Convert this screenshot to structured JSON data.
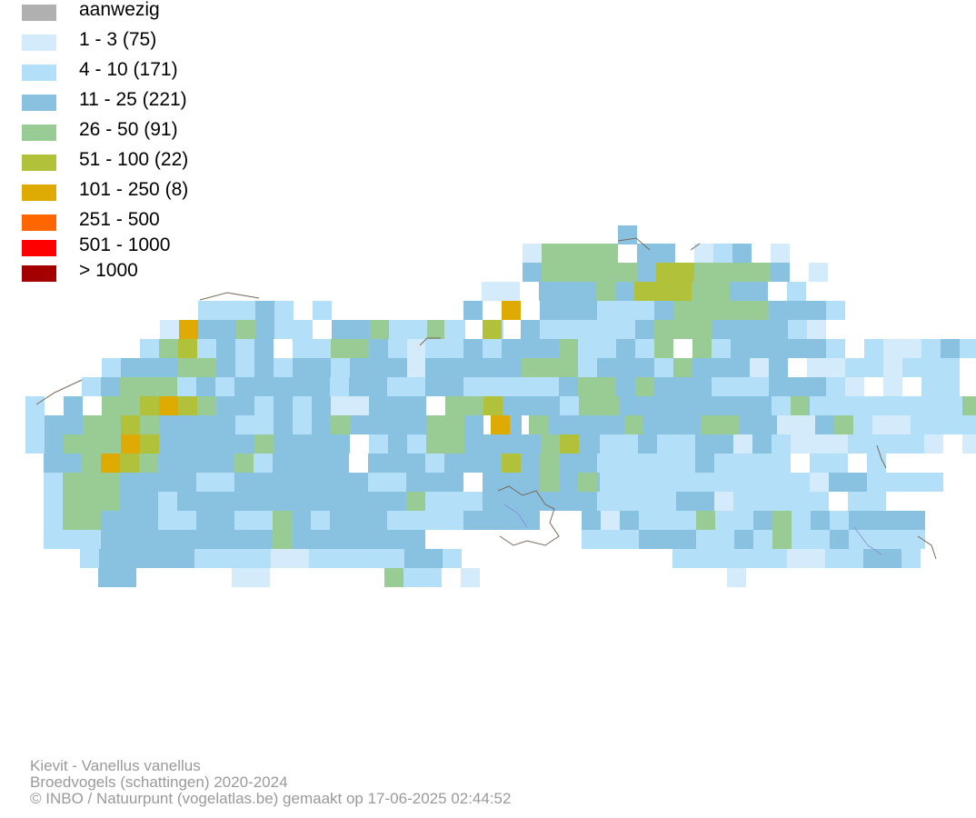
{
  "legend": {
    "items": [
      {
        "label": "aanwezig",
        "color": "#b0b0b0"
      },
      {
        "label": "1 - 3 (75)",
        "color": "#d3ebfb"
      },
      {
        "label": "4 - 10 (171)",
        "color": "#b3e0f8"
      },
      {
        "label": "11 - 25 (221)",
        "color": "#88c2e0"
      },
      {
        "label": "26 - 50 (91)",
        "color": "#98cc94"
      },
      {
        "label": "51 - 100 (22)",
        "color": "#b1c23a"
      },
      {
        "label": "101 - 250 (8)",
        "color": "#dfab03"
      },
      {
        "label": "251 - 500",
        "color": "#ff6600"
      },
      {
        "label": "501 - 1000",
        "color": "#ff0000"
      },
      {
        "label": "> 1000",
        "color": "#a50000"
      }
    ]
  },
  "footer": {
    "species": "Kievit - Vanellus vanellus",
    "dataset": "Broedvogels (schattingen) 2020-2024",
    "credit": "© INBO / Natuurpunt (vogelatlas.be) gemaakt op 17-06-2025 02:44:52"
  }
}
